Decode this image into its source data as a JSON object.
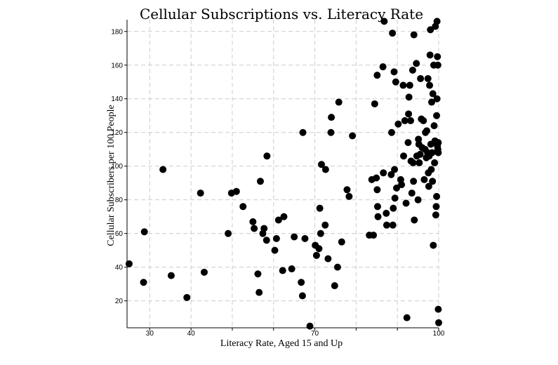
{
  "chart_data": {
    "type": "scatter",
    "title": "Cellular Subscriptions vs. Literacy Rate",
    "xlabel": "Literacy Rate, Aged 15 and Up",
    "ylabel": "Cellular Subscribers per 100 People",
    "xlim": [
      24.5,
      100
    ],
    "ylim": [
      4,
      187
    ],
    "x_ticks": [
      30,
      40,
      50,
      60,
      70,
      80,
      90,
      100
    ],
    "y_ticks": [
      20,
      40,
      60,
      80,
      100,
      120,
      140,
      160,
      180
    ],
    "grid": true,
    "x_tick_labels_shown": [
      "30",
      "40",
      "",
      "",
      "70",
      "",
      "",
      "100"
    ],
    "points": [
      {
        "x": 25,
        "y": 42
      },
      {
        "x": 28.5,
        "y": 31
      },
      {
        "x": 28.7,
        "y": 61
      },
      {
        "x": 33.2,
        "y": 98
      },
      {
        "x": 35.2,
        "y": 35
      },
      {
        "x": 39,
        "y": 22
      },
      {
        "x": 42.3,
        "y": 84
      },
      {
        "x": 43.2,
        "y": 37
      },
      {
        "x": 49,
        "y": 60
      },
      {
        "x": 49.8,
        "y": 84
      },
      {
        "x": 51,
        "y": 85
      },
      {
        "x": 52.6,
        "y": 76
      },
      {
        "x": 55,
        "y": 67
      },
      {
        "x": 55.3,
        "y": 63
      },
      {
        "x": 56.2,
        "y": 36
      },
      {
        "x": 56.5,
        "y": 25
      },
      {
        "x": 56.8,
        "y": 91
      },
      {
        "x": 57.4,
        "y": 60
      },
      {
        "x": 57.7,
        "y": 63
      },
      {
        "x": 58.3,
        "y": 56
      },
      {
        "x": 58.4,
        "y": 106
      },
      {
        "x": 60.3,
        "y": 50
      },
      {
        "x": 60.7,
        "y": 57
      },
      {
        "x": 61.2,
        "y": 68
      },
      {
        "x": 62.2,
        "y": 38
      },
      {
        "x": 62.5,
        "y": 70
      },
      {
        "x": 64.4,
        "y": 39
      },
      {
        "x": 65,
        "y": 58
      },
      {
        "x": 66.7,
        "y": 31
      },
      {
        "x": 67,
        "y": 23
      },
      {
        "x": 67.1,
        "y": 120
      },
      {
        "x": 67.6,
        "y": 57
      },
      {
        "x": 68.8,
        "y": 5
      },
      {
        "x": 70.1,
        "y": 53
      },
      {
        "x": 70.4,
        "y": 47
      },
      {
        "x": 71,
        "y": 51
      },
      {
        "x": 71.2,
        "y": 75
      },
      {
        "x": 71.4,
        "y": 60
      },
      {
        "x": 71.6,
        "y": 101
      },
      {
        "x": 72.5,
        "y": 65
      },
      {
        "x": 72.6,
        "y": 98
      },
      {
        "x": 73.2,
        "y": 45
      },
      {
        "x": 73.9,
        "y": 120
      },
      {
        "x": 74,
        "y": 129
      },
      {
        "x": 74.8,
        "y": 29
      },
      {
        "x": 75.5,
        "y": 40
      },
      {
        "x": 75.8,
        "y": 138
      },
      {
        "x": 76.5,
        "y": 55
      },
      {
        "x": 77.8,
        "y": 86
      },
      {
        "x": 78.3,
        "y": 82
      },
      {
        "x": 79.1,
        "y": 118
      },
      {
        "x": 83.2,
        "y": 59
      },
      {
        "x": 83.8,
        "y": 92
      },
      {
        "x": 84.2,
        "y": 59
      },
      {
        "x": 84.5,
        "y": 137
      },
      {
        "x": 84.9,
        "y": 93
      },
      {
        "x": 85.1,
        "y": 154
      },
      {
        "x": 85.1,
        "y": 86
      },
      {
        "x": 85.2,
        "y": 76
      },
      {
        "x": 85.3,
        "y": 70
      },
      {
        "x": 86.5,
        "y": 159
      },
      {
        "x": 86.6,
        "y": 96
      },
      {
        "x": 86.8,
        "y": 186
      },
      {
        "x": 87.3,
        "y": 72
      },
      {
        "x": 87.4,
        "y": 65
      },
      {
        "x": 88.5,
        "y": 95
      },
      {
        "x": 88.6,
        "y": 120
      },
      {
        "x": 88.8,
        "y": 179
      },
      {
        "x": 88.9,
        "y": 65
      },
      {
        "x": 89,
        "y": 75
      },
      {
        "x": 89.2,
        "y": 156
      },
      {
        "x": 89.3,
        "y": 98
      },
      {
        "x": 89.4,
        "y": 81
      },
      {
        "x": 89.6,
        "y": 150
      },
      {
        "x": 89.8,
        "y": 87
      },
      {
        "x": 90.2,
        "y": 125
      },
      {
        "x": 90.8,
        "y": 92
      },
      {
        "x": 91,
        "y": 89
      },
      {
        "x": 91.4,
        "y": 148
      },
      {
        "x": 91.5,
        "y": 106
      },
      {
        "x": 91.8,
        "y": 127
      },
      {
        "x": 92.1,
        "y": 78
      },
      {
        "x": 92.3,
        "y": 10
      },
      {
        "x": 92.6,
        "y": 114
      },
      {
        "x": 92.7,
        "y": 131
      },
      {
        "x": 92.8,
        "y": 141
      },
      {
        "x": 93,
        "y": 148
      },
      {
        "x": 93.2,
        "y": 127
      },
      {
        "x": 93.3,
        "y": 103
      },
      {
        "x": 93.5,
        "y": 84
      },
      {
        "x": 93.7,
        "y": 157
      },
      {
        "x": 93.8,
        "y": 102
      },
      {
        "x": 93.9,
        "y": 91
      },
      {
        "x": 94,
        "y": 178
      },
      {
        "x": 94.1,
        "y": 68
      },
      {
        "x": 94.6,
        "y": 161
      },
      {
        "x": 94.7,
        "y": 106
      },
      {
        "x": 95,
        "y": 80
      },
      {
        "x": 95.1,
        "y": 116
      },
      {
        "x": 95.2,
        "y": 113
      },
      {
        "x": 95.3,
        "y": 102
      },
      {
        "x": 95.5,
        "y": 107
      },
      {
        "x": 95.6,
        "y": 152
      },
      {
        "x": 95.8,
        "y": 128
      },
      {
        "x": 96,
        "y": 111
      },
      {
        "x": 96.3,
        "y": 127
      },
      {
        "x": 96.5,
        "y": 92
      },
      {
        "x": 96.7,
        "y": 110
      },
      {
        "x": 96.8,
        "y": 120
      },
      {
        "x": 97,
        "y": 105
      },
      {
        "x": 97.1,
        "y": 121
      },
      {
        "x": 97.3,
        "y": 108
      },
      {
        "x": 97.4,
        "y": 152
      },
      {
        "x": 97.5,
        "y": 96
      },
      {
        "x": 97.6,
        "y": 88
      },
      {
        "x": 97.7,
        "y": 106
      },
      {
        "x": 97.8,
        "y": 148
      },
      {
        "x": 97.9,
        "y": 166
      },
      {
        "x": 98,
        "y": 181
      },
      {
        "x": 98.1,
        "y": 113
      },
      {
        "x": 98.2,
        "y": 98
      },
      {
        "x": 98.3,
        "y": 138
      },
      {
        "x": 98.4,
        "y": 108
      },
      {
        "x": 98.5,
        "y": 91
      },
      {
        "x": 98.6,
        "y": 143
      },
      {
        "x": 98.7,
        "y": 53
      },
      {
        "x": 98.8,
        "y": 160
      },
      {
        "x": 98.9,
        "y": 124
      },
      {
        "x": 99,
        "y": 102
      },
      {
        "x": 99.1,
        "y": 115
      },
      {
        "x": 99.2,
        "y": 183
      },
      {
        "x": 99.3,
        "y": 71
      },
      {
        "x": 99.4,
        "y": 76
      },
      {
        "x": 99.5,
        "y": 82
      },
      {
        "x": 99.5,
        "y": 130
      },
      {
        "x": 99.6,
        "y": 140
      },
      {
        "x": 99.6,
        "y": 186
      },
      {
        "x": 99.7,
        "y": 165
      },
      {
        "x": 99.7,
        "y": 112
      },
      {
        "x": 99.8,
        "y": 110
      },
      {
        "x": 99.8,
        "y": 160
      },
      {
        "x": 99.9,
        "y": 108
      },
      {
        "x": 99.9,
        "y": 15
      },
      {
        "x": 100,
        "y": 7
      },
      {
        "x": 99.9,
        "y": 114
      }
    ]
  }
}
